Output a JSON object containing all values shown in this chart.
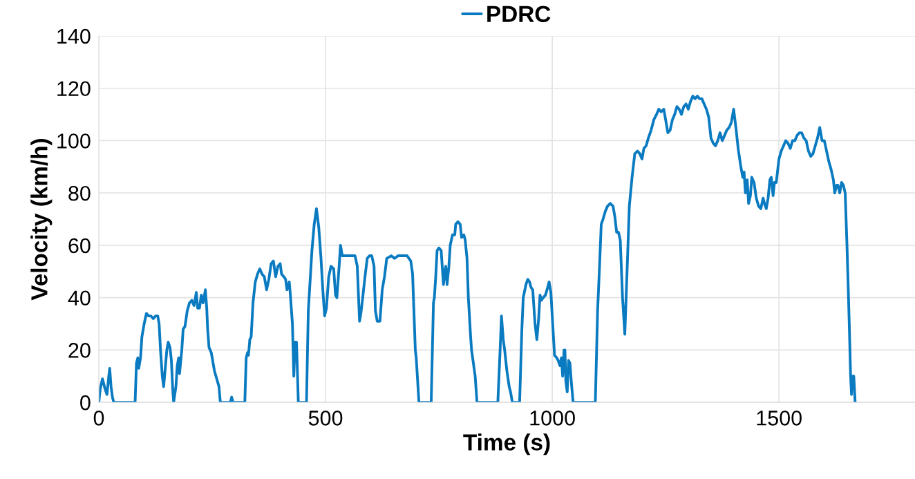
{
  "chart_data": {
    "type": "line",
    "xlabel": "Time (s)",
    "ylabel": "Velocity (km/h)",
    "xlim": [
      0,
      1800
    ],
    "xticks": [
      0,
      500,
      1000,
      1500
    ],
    "ylim": [
      0,
      140
    ],
    "yticks": [
      0,
      20,
      40,
      60,
      80,
      100,
      120,
      140
    ],
    "grid": true,
    "legend": "top",
    "marker": "none",
    "line_style": "solid",
    "x": [
      0,
      3,
      8,
      14,
      18,
      22,
      24,
      27,
      30,
      33,
      80,
      83,
      86,
      88,
      92,
      95,
      100,
      105,
      110,
      115,
      120,
      125,
      130,
      133,
      136,
      140,
      143,
      147,
      150,
      153,
      157,
      160,
      163,
      165,
      170,
      173,
      176,
      178,
      183,
      186,
      190,
      195,
      200,
      205,
      210,
      215,
      218,
      222,
      226,
      230,
      235,
      238,
      240,
      243,
      248,
      255,
      260,
      265,
      268,
      290,
      293,
      296,
      322,
      325,
      328,
      330,
      333,
      336,
      340,
      345,
      350,
      355,
      360,
      365,
      370,
      375,
      380,
      385,
      390,
      395,
      400,
      403,
      408,
      412,
      415,
      420,
      422,
      427,
      430,
      433,
      436,
      440,
      458,
      462,
      470,
      475,
      480,
      485,
      490,
      494,
      498,
      502,
      507,
      512,
      518,
      522,
      525,
      530,
      533,
      537,
      545,
      565,
      570,
      575,
      578,
      582,
      587,
      592,
      597,
      602,
      607,
      610,
      614,
      620,
      625,
      630,
      635,
      645,
      652,
      660,
      680,
      688,
      692,
      698,
      700,
      706,
      733,
      738,
      740,
      743,
      746,
      750,
      755,
      760,
      763,
      765,
      768,
      772,
      775,
      780,
      785,
      787,
      792,
      797,
      800,
      805,
      808,
      812,
      815,
      820,
      822,
      826,
      830,
      834,
      880,
      885,
      888,
      892,
      895,
      900,
      905,
      908,
      912,
      928,
      933,
      936,
      942,
      946,
      950,
      953,
      957,
      962,
      966,
      970,
      973,
      976,
      980,
      985,
      990,
      993,
      997,
      1001,
      1005,
      1010,
      1013,
      1017,
      1020,
      1023,
      1026,
      1028,
      1030,
      1033,
      1036,
      1039,
      1042,
      1046,
      1095,
      1100,
      1105,
      1108,
      1112,
      1117,
      1122,
      1128,
      1134,
      1138,
      1142,
      1146,
      1150,
      1155,
      1160,
      1166,
      1170,
      1176,
      1182,
      1188,
      1193,
      1198,
      1202,
      1207,
      1212,
      1218,
      1224,
      1230,
      1235,
      1240,
      1246,
      1250,
      1255,
      1260,
      1265,
      1270,
      1275,
      1280,
      1285,
      1290,
      1295,
      1300,
      1305,
      1310,
      1315,
      1320,
      1325,
      1330,
      1335,
      1340,
      1345,
      1350,
      1355,
      1360,
      1365,
      1370,
      1375,
      1380,
      1385,
      1390,
      1395,
      1400,
      1405,
      1410,
      1415,
      1420,
      1423,
      1426,
      1430,
      1433,
      1437,
      1440,
      1445,
      1450,
      1455,
      1460,
      1465,
      1468,
      1472,
      1476,
      1480,
      1483,
      1487,
      1490,
      1494,
      1500,
      1505,
      1510,
      1515,
      1520,
      1525,
      1530,
      1535,
      1540,
      1545,
      1550,
      1555,
      1560,
      1565,
      1570,
      1575,
      1580,
      1585,
      1590,
      1595,
      1600,
      1605,
      1610,
      1615,
      1620,
      1623,
      1627,
      1630,
      1634,
      1638,
      1642,
      1646,
      1650,
      1655,
      1658,
      1660,
      1662,
      1665,
      1668
    ],
    "series": [
      {
        "name": "PDRC",
        "color": "#0a7bc1",
        "values": [
          0,
          5,
          9,
          5,
          3,
          10,
          13,
          6,
          2,
          0,
          0,
          15,
          17,
          13,
          17,
          25,
          30,
          34,
          33,
          33,
          32,
          33,
          33,
          30,
          20,
          10,
          6,
          14,
          20,
          23,
          21,
          16,
          5,
          0,
          6,
          14,
          17,
          11,
          20,
          28,
          29,
          35,
          38,
          39,
          37,
          42,
          36,
          36,
          41,
          38,
          43,
          36,
          28,
          21,
          19,
          12,
          9,
          6,
          0,
          0,
          2,
          0,
          0,
          17,
          19,
          18,
          24,
          25,
          38,
          46,
          49,
          51,
          49,
          48,
          43,
          47,
          53,
          54,
          48,
          52,
          53,
          49,
          48,
          47,
          43,
          46,
          42,
          30,
          10,
          23,
          23,
          0,
          0,
          35,
          58,
          68,
          74,
          67,
          55,
          43,
          33,
          36,
          48,
          52,
          51,
          41,
          40,
          52,
          60,
          56,
          56,
          56,
          52,
          31,
          34,
          40,
          48,
          55,
          56,
          56,
          52,
          35,
          31,
          31,
          43,
          48,
          55,
          56,
          55,
          56,
          56,
          54,
          49,
          20,
          17,
          0,
          0,
          38,
          40,
          48,
          58,
          59,
          58,
          45,
          50,
          52,
          45,
          52,
          60,
          64,
          64,
          68,
          69,
          68,
          63,
          64,
          62,
          55,
          40,
          25,
          20,
          15,
          10,
          0,
          0,
          20,
          33,
          24,
          20,
          12,
          6,
          4,
          0,
          0,
          28,
          40,
          45,
          47,
          46,
          44,
          43,
          30,
          24,
          32,
          41,
          39,
          40,
          41,
          44,
          46,
          42,
          30,
          18,
          17,
          16,
          14,
          17,
          10,
          20,
          20,
          8,
          4,
          16,
          15,
          8,
          0,
          0,
          35,
          55,
          68,
          70,
          73,
          75,
          76,
          75,
          71,
          65,
          65,
          62,
          40,
          26,
          55,
          75,
          86,
          95,
          96,
          95,
          93,
          97,
          98,
          101,
          104,
          108,
          110,
          112,
          111,
          112,
          108,
          103,
          104,
          108,
          110,
          113,
          112,
          110,
          113,
          114,
          112,
          115,
          117,
          116,
          117,
          116,
          116,
          114,
          112,
          109,
          101,
          99,
          98,
          100,
          103,
          100,
          102,
          104,
          105,
          107,
          112,
          105,
          97,
          91,
          86,
          88,
          80,
          85,
          76,
          79,
          86,
          84,
          78,
          75,
          74,
          78,
          76,
          74,
          78,
          85,
          86,
          79,
          84,
          84,
          93,
          96,
          98,
          100,
          99,
          97,
          100,
          100,
          102,
          103,
          103,
          101,
          100,
          96,
          94,
          95,
          98,
          101,
          105,
          100,
          100,
          96,
          92,
          89,
          85,
          80,
          83,
          83,
          80,
          84,
          83,
          80,
          60,
          30,
          10,
          3,
          10,
          10,
          0
        ]
      }
    ]
  }
}
